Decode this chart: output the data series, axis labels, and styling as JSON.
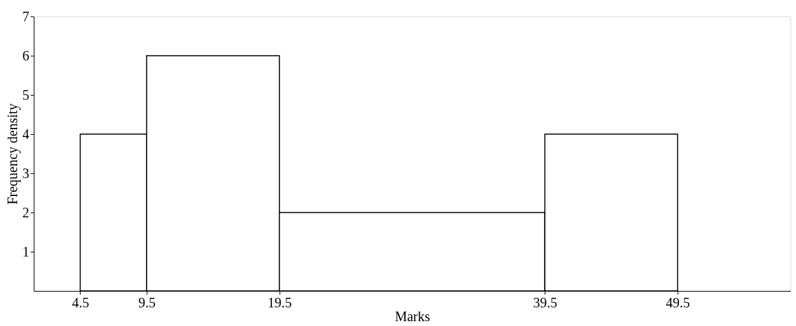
{
  "chart_data": {
    "type": "histogram",
    "xlabel": "Marks",
    "ylabel": "Frequency density",
    "bins": [
      4.5,
      9.5,
      19.5,
      39.5,
      49.5
    ],
    "values": [
      4,
      6,
      2,
      4
    ],
    "color": "#ffffff",
    "xlim": [
      1,
      58
    ],
    "xticks": [
      4.5,
      9.5,
      19.5,
      39.5,
      49.5
    ],
    "ylim": [
      0,
      7
    ],
    "yticks": [
      1,
      2,
      3,
      4,
      5,
      6,
      7
    ],
    "grid": false
  }
}
